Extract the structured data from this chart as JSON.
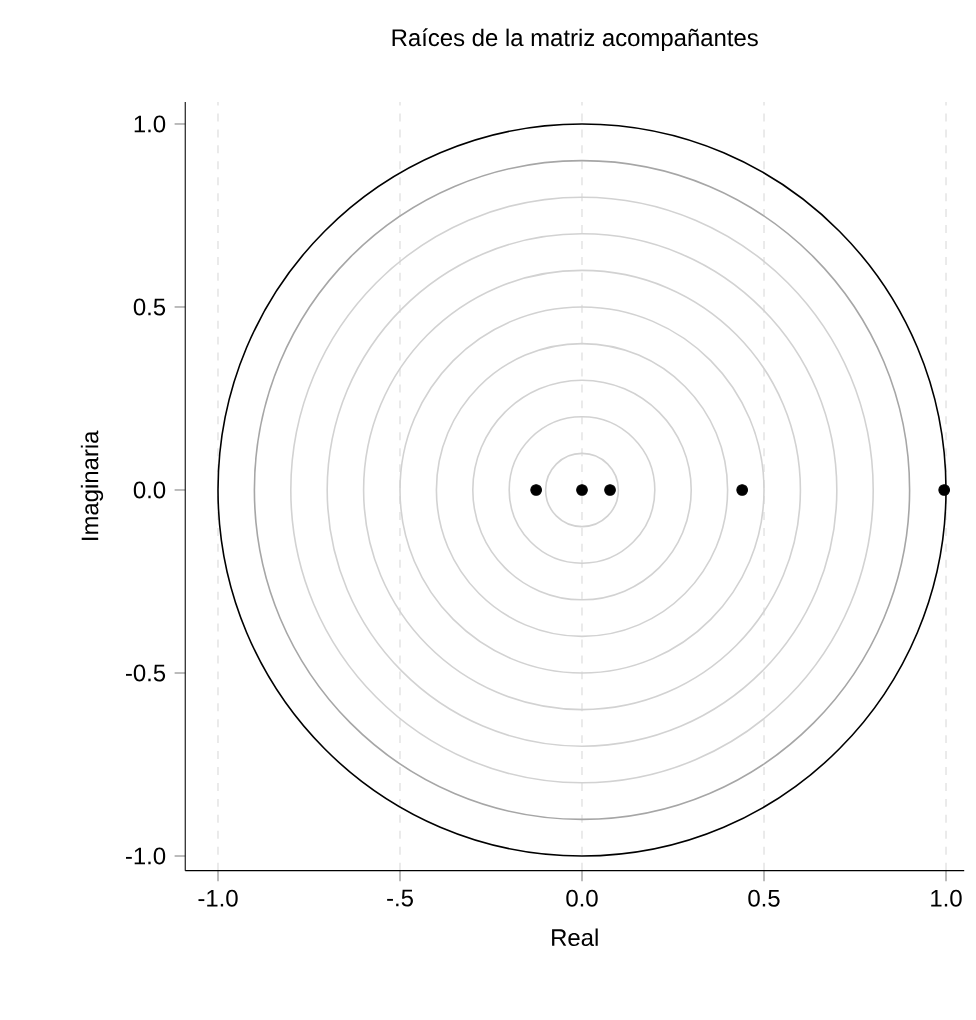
{
  "chart_data": {
    "type": "scatter",
    "title": "Raíces de la matriz acompañantes",
    "xlabel": "Real",
    "ylabel": "Imaginaria",
    "x": [
      -0.126,
      0.0,
      0.077,
      0.44,
      0.995
    ],
    "values": [
      0,
      0,
      0,
      0,
      0
    ],
    "color": "#000000",
    "marker": "circle",
    "xlim": [
      -1.09,
      1.05
    ],
    "ylim": [
      -1.04,
      1.06
    ],
    "xticks": [
      {
        "value": -1,
        "label": "-1.0"
      },
      {
        "value": -0.5,
        "label": "-.5"
      },
      {
        "value": 0,
        "label": "0.0"
      },
      {
        "value": 0.5,
        "label": "0.5"
      },
      {
        "value": 1,
        "label": "1.0"
      }
    ],
    "yticks": [
      {
        "value": -1,
        "label": "-1.0"
      },
      {
        "value": -0.5,
        "label": "-0.5"
      },
      {
        "value": 0,
        "label": "0.0"
      },
      {
        "value": 0.5,
        "label": "0.5"
      },
      {
        "value": 1,
        "label": "1.0"
      }
    ],
    "grid": "x"
  }
}
